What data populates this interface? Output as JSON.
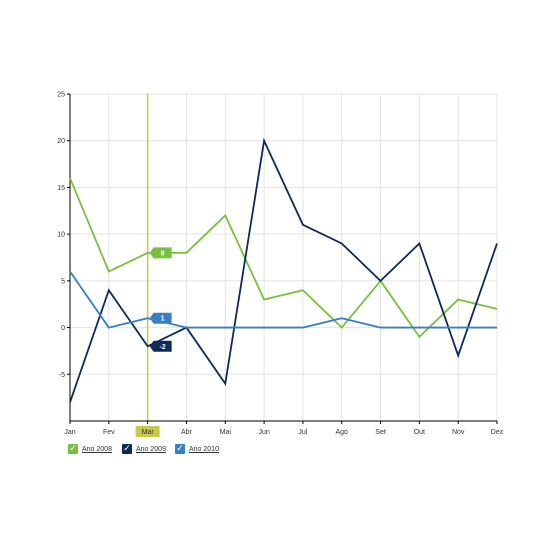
{
  "chart_data": {
    "type": "line",
    "categories": [
      "Jan",
      "Fev",
      "Mar",
      "Abr",
      "Mai",
      "Jun",
      "Jul",
      "Ago",
      "Set",
      "Out",
      "Nov",
      "Dez"
    ],
    "ylim": [
      -10,
      25
    ],
    "yticks": [
      -5,
      0,
      5,
      10,
      15,
      20,
      25
    ],
    "ytick_labels": [
      "-5",
      "0",
      "5",
      "10",
      "15",
      "20",
      "25"
    ],
    "grid": true,
    "legend_placement": "bottom-left",
    "highlighted_category": "Mar",
    "highlight_color": "#c8c84a",
    "series": [
      {
        "name": "Ano 2008",
        "color": "#78c040",
        "values": [
          16,
          6,
          8,
          8,
          12,
          3,
          4,
          0,
          5,
          -1,
          3,
          2
        ],
        "marker_label": "8"
      },
      {
        "name": "Ano 2009",
        "color": "#0d2b5a",
        "values": [
          -8,
          4,
          -2,
          0,
          -6,
          20,
          11,
          9,
          5,
          9,
          -3,
          9
        ],
        "marker_label": "-2"
      },
      {
        "name": "Ano 2010",
        "color": "#3a7fc4",
        "values": [
          6,
          0,
          1,
          0,
          0,
          0,
          0,
          1,
          0,
          0,
          0,
          0
        ],
        "marker_label": "1"
      }
    ],
    "legend": {
      "check_icon": "checkmark-icon"
    }
  }
}
